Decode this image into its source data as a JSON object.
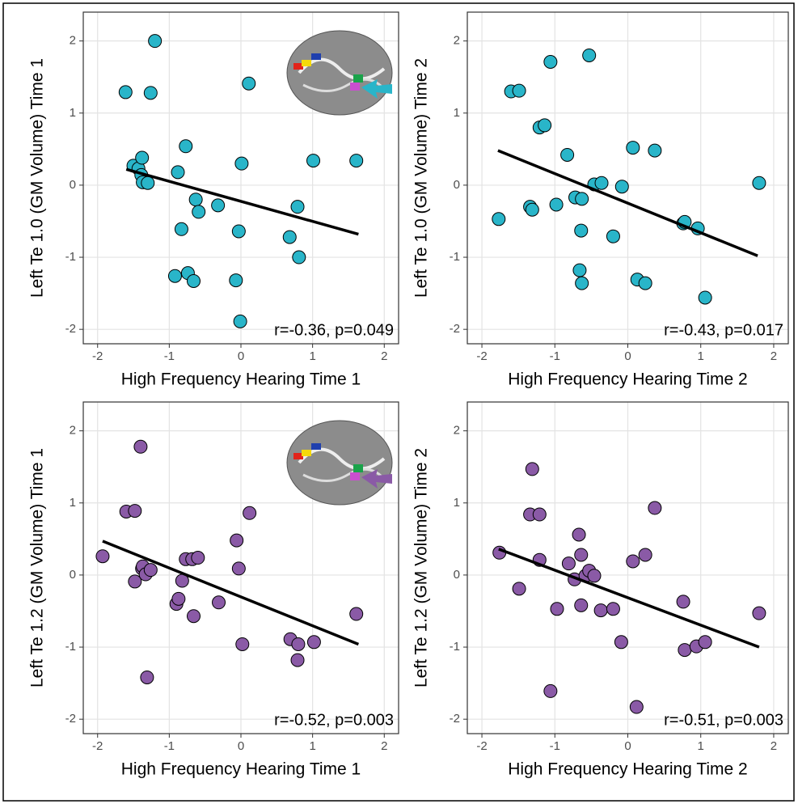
{
  "chart_data": [
    {
      "type": "scatter",
      "x_label": "High Frequency Hearing Time 1",
      "y_label": "Left Te 1.0 (GM Volume) Time 1",
      "annotation": "r=-0.36, p=0.049",
      "color": "#29b5c9",
      "grid": true,
      "xlim": [
        -2.2,
        2.2
      ],
      "ylim": [
        -2.2,
        2.4
      ],
      "xticks": [
        -2,
        -1,
        0,
        1,
        2
      ],
      "yticks": [
        -2,
        -1,
        0,
        1,
        2
      ],
      "x": [
        -1.61,
        -1.2,
        -1.26,
        0.11,
        -0.77,
        -1.5,
        -1.43,
        -1.38,
        -1.39,
        -1.37,
        -1.3,
        -0.88,
        -0.63,
        -0.59,
        -0.32,
        0.01,
        1.01,
        1.61,
        -0.83,
        -0.03,
        0.79,
        0.68,
        0.81,
        -0.92,
        -0.74,
        -0.66,
        -0.07,
        -0.01
      ],
      "y": [
        1.29,
        2.0,
        1.28,
        1.41,
        0.54,
        0.27,
        0.23,
        0.38,
        0.14,
        0.04,
        0.03,
        0.18,
        -0.2,
        -0.37,
        -0.28,
        0.3,
        0.34,
        0.34,
        -0.61,
        -0.64,
        -0.3,
        -0.72,
        -1.0,
        -1.26,
        -1.22,
        -1.33,
        -1.32,
        -1.89
      ],
      "fit_x": [
        -1.6,
        1.64
      ],
      "fit_y": [
        0.22,
        -0.68
      ]
    },
    {
      "type": "scatter",
      "x_label": "High Frequency Hearing Time 2",
      "y_label": "Left Te 1.0 (GM Volume) Time 2",
      "annotation": "r=-0.43, p=0.017",
      "color": "#29b5c9",
      "grid": true,
      "xlim": [
        -2.2,
        2.2
      ],
      "ylim": [
        -2.2,
        2.4
      ],
      "xticks": [
        -2,
        -1,
        0,
        1,
        2
      ],
      "yticks": [
        -2,
        -1,
        0,
        1,
        2
      ],
      "x": [
        -1.77,
        -1.6,
        -1.49,
        -1.21,
        -1.14,
        -1.06,
        -0.53,
        -1.34,
        -1.31,
        -0.98,
        -0.83,
        -0.72,
        -0.63,
        -0.64,
        -0.66,
        -0.63,
        -0.46,
        -0.36,
        -0.08,
        -0.2,
        0.07,
        0.37,
        0.13,
        0.24,
        0.76,
        0.78,
        0.96,
        1.06,
        1.8
      ],
      "y": [
        -0.47,
        1.3,
        1.31,
        0.8,
        0.83,
        1.71,
        1.8,
        -0.3,
        -0.34,
        -0.27,
        0.42,
        -0.17,
        -0.19,
        -0.63,
        -1.18,
        -1.36,
        0.01,
        0.03,
        -0.02,
        -0.71,
        0.52,
        0.48,
        -1.31,
        -1.36,
        -0.53,
        -0.51,
        -0.6,
        -1.56,
        0.03
      ],
      "fit_x": [
        -1.78,
        1.78
      ],
      "fit_y": [
        0.48,
        -0.98
      ]
    },
    {
      "type": "scatter",
      "x_label": "High Frequency Hearing Time 1",
      "y_label": "Left Te 1.2 (GM Volume) Time 1",
      "annotation": "r=-0.52, p=0.003",
      "color": "#8a5aa6",
      "grid": true,
      "xlim": [
        -2.2,
        2.2
      ],
      "ylim": [
        -2.2,
        2.4
      ],
      "xticks": [
        -2,
        -1,
        0,
        1,
        2
      ],
      "yticks": [
        -2,
        -1,
        0,
        1,
        2
      ],
      "x": [
        -1.93,
        -1.6,
        -1.48,
        -1.4,
        -1.48,
        -1.38,
        -1.37,
        -1.33,
        -1.31,
        -1.26,
        -0.77,
        -0.68,
        -0.6,
        -0.82,
        -0.9,
        -0.87,
        -0.66,
        -0.31,
        -0.06,
        -0.03,
        0.12,
        0.02,
        0.69,
        0.8,
        0.79,
        1.02,
        1.61
      ],
      "y": [
        0.26,
        0.88,
        0.89,
        1.78,
        -0.09,
        0.09,
        0.12,
        0.01,
        -1.42,
        0.07,
        0.22,
        0.22,
        0.24,
        -0.08,
        -0.4,
        -0.33,
        -0.57,
        -0.38,
        0.48,
        0.09,
        0.86,
        -0.96,
        -0.89,
        -0.96,
        -1.18,
        -0.93,
        -0.54
      ],
      "fit_x": [
        -1.93,
        1.64
      ],
      "fit_y": [
        0.47,
        -0.96
      ]
    },
    {
      "type": "scatter",
      "x_label": "High Frequency Hearing Time 2",
      "y_label": "Left Te 1.2 (GM Volume) Time 2",
      "annotation": "r=-0.51, p=0.003",
      "color": "#8a5aa6",
      "grid": true,
      "xlim": [
        -2.2,
        2.2
      ],
      "ylim": [
        -2.2,
        2.4
      ],
      "xticks": [
        -2,
        -1,
        0,
        1,
        2
      ],
      "yticks": [
        -2,
        -1,
        0,
        1,
        2
      ],
      "x": [
        -1.76,
        -1.49,
        -1.31,
        -1.34,
        -1.21,
        -1.21,
        -1.06,
        -0.97,
        -0.81,
        -0.73,
        -0.67,
        -0.64,
        -0.64,
        -0.58,
        -0.53,
        -0.46,
        -0.37,
        -0.2,
        -0.09,
        0.07,
        0.12,
        0.24,
        0.37,
        0.76,
        0.78,
        0.94,
        1.06,
        1.8
      ],
      "y": [
        0.31,
        -0.19,
        1.47,
        0.84,
        0.84,
        0.21,
        -1.61,
        -0.47,
        0.16,
        -0.06,
        0.56,
        0.28,
        -0.42,
        -0.01,
        0.06,
        -0.01,
        -0.49,
        -0.47,
        -0.93,
        0.19,
        -1.83,
        0.28,
        0.93,
        -0.37,
        -1.04,
        -0.99,
        -0.93,
        -0.53
      ],
      "fit_x": [
        -1.77,
        1.8
      ],
      "fit_y": [
        0.36,
        -1.0
      ]
    }
  ]
}
